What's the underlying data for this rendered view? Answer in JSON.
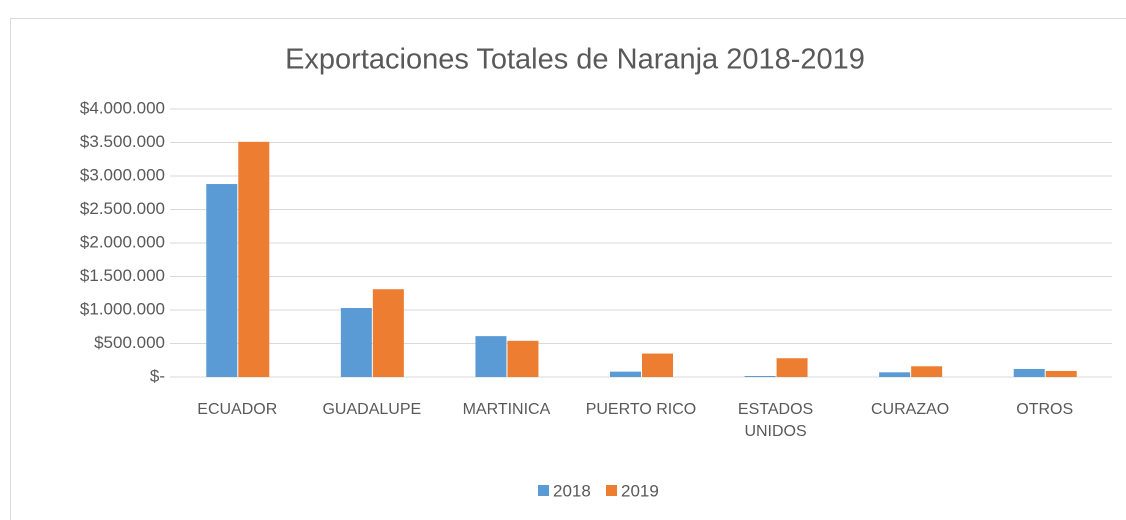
{
  "chart_data": {
    "type": "bar",
    "title": "Exportaciones Totales de Naranja  2018-2019",
    "categories": [
      "ECUADOR",
      "GUADALUPE",
      "MARTINICA",
      "PUERTO RICO",
      "ESTADOS UNIDOS",
      "CURAZAO",
      "OTROS"
    ],
    "series": [
      {
        "name": "2018",
        "color": "#5b9bd5",
        "values": [
          2880000,
          1030000,
          610000,
          80000,
          15000,
          70000,
          120000
        ]
      },
      {
        "name": "2019",
        "color": "#ed7d31",
        "values": [
          3510000,
          1310000,
          540000,
          350000,
          280000,
          160000,
          90000
        ]
      }
    ],
    "ylim": [
      0,
      4000000
    ],
    "yticks": [
      {
        "value": 0,
        "label": "$-"
      },
      {
        "value": 500000,
        "label": "$500.000"
      },
      {
        "value": 1000000,
        "label": "$1.000.000"
      },
      {
        "value": 1500000,
        "label": "$1.500.000"
      },
      {
        "value": 2000000,
        "label": "$2.000.000"
      },
      {
        "value": 2500000,
        "label": "$2.500.000"
      },
      {
        "value": 3000000,
        "label": "$3.000.000"
      },
      {
        "value": 3500000,
        "label": "$3.500.000"
      },
      {
        "value": 4000000,
        "label": "$4.000.000"
      }
    ],
    "grid": true,
    "legend": "bottom"
  }
}
